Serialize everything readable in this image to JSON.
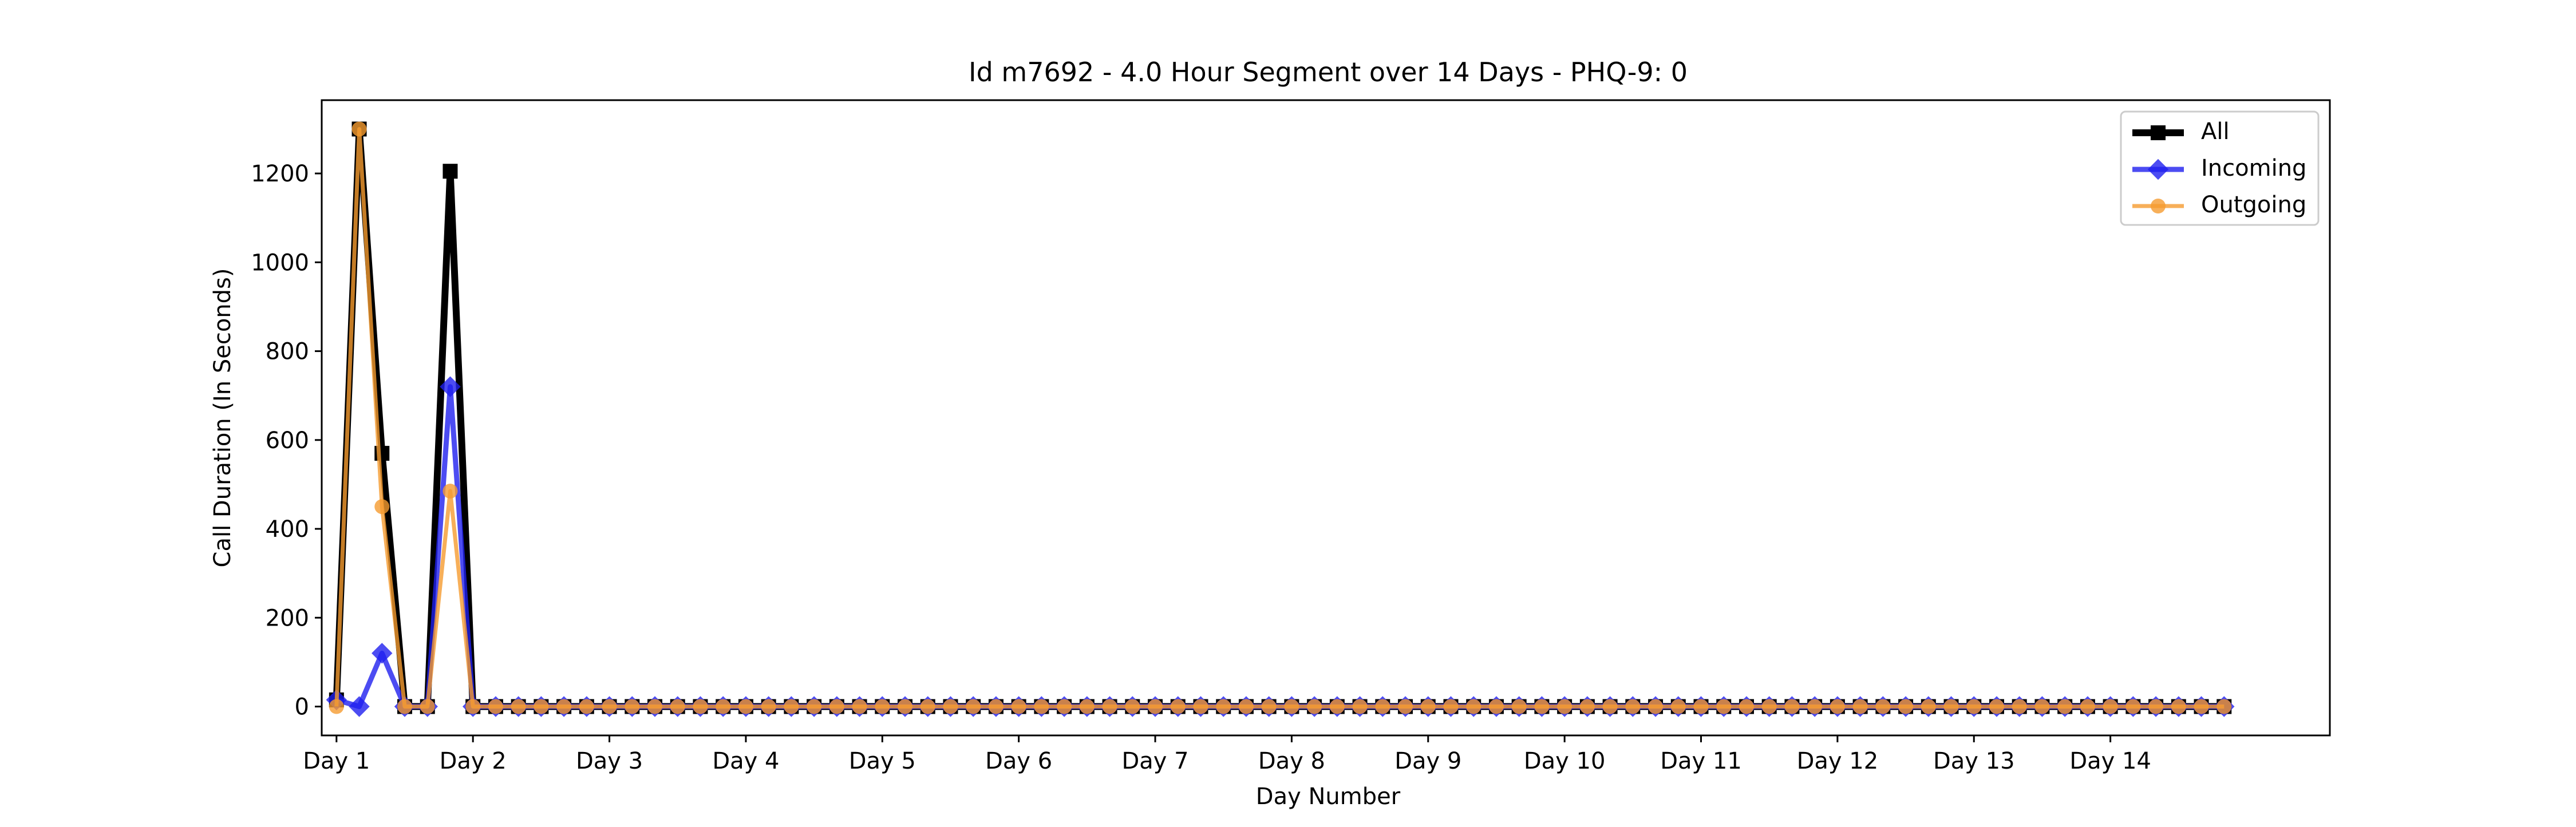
{
  "chart_data": {
    "type": "line",
    "title": "Id m7692 - 4.0 Hour Segment over 14 Days - PHQ-9: 0",
    "xlabel": "Day Number",
    "ylabel": "Call Duration (In Seconds)",
    "xlim": [
      -0.65,
      87.65
    ],
    "ylim": [
      -65,
      1365
    ],
    "yticks": [
      0,
      200,
      400,
      600,
      800,
      1000,
      1200
    ],
    "xticks": [
      {
        "pos": 0,
        "label": "Day 1"
      },
      {
        "pos": 6,
        "label": "Day 2"
      },
      {
        "pos": 12,
        "label": "Day 3"
      },
      {
        "pos": 18,
        "label": "Day 4"
      },
      {
        "pos": 24,
        "label": "Day 5"
      },
      {
        "pos": 30,
        "label": "Day 6"
      },
      {
        "pos": 36,
        "label": "Day 7"
      },
      {
        "pos": 42,
        "label": "Day 8"
      },
      {
        "pos": 48,
        "label": "Day 9"
      },
      {
        "pos": 54,
        "label": "Day 10"
      },
      {
        "pos": 60,
        "label": "Day 11"
      },
      {
        "pos": 66,
        "label": "Day 12"
      },
      {
        "pos": 72,
        "label": "Day 13"
      },
      {
        "pos": 78,
        "label": "Day 14"
      }
    ],
    "grid": false,
    "legend_position": "top-right",
    "n_points": 84,
    "series": [
      {
        "name": "All",
        "color": "#000000",
        "marker": "square",
        "nonzero": {
          "0": 15,
          "1": 1300,
          "2": 570,
          "5": 1205
        }
      },
      {
        "name": "Incoming",
        "color": "#1f1fef",
        "marker": "diamond",
        "nonzero": {
          "0": 15,
          "2": 120,
          "5": 720
        }
      },
      {
        "name": "Outgoing",
        "color": "#f59b2f",
        "marker": "circle",
        "nonzero": {
          "1": 1300,
          "2": 450,
          "5": 485
        }
      }
    ]
  }
}
